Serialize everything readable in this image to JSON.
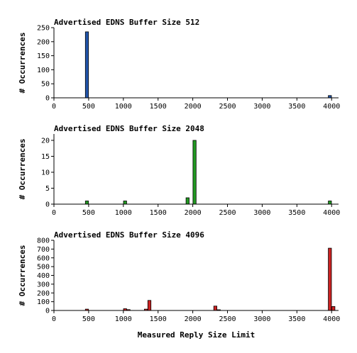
{
  "chart_data": [
    {
      "type": "bar",
      "title": "Advertised EDNS Buffer Size 512",
      "ylabel": "# Occurrences",
      "xlabel": "",
      "xlim": [
        0,
        4100
      ],
      "ylim": [
        0,
        250
      ],
      "xticks": [
        0,
        500,
        1000,
        1500,
        2000,
        2500,
        3000,
        3500,
        4000
      ],
      "yticks": [
        0,
        50,
        100,
        150,
        200,
        250
      ],
      "grid": false,
      "color": "#2255aa",
      "bars": [
        {
          "x": 475,
          "value": 235
        },
        {
          "x": 3975,
          "value": 8
        }
      ]
    },
    {
      "type": "bar",
      "title": "Advertised EDNS Buffer Size 2048",
      "ylabel": "# Occurrences",
      "xlabel": "",
      "xlim": [
        0,
        4100
      ],
      "ylim": [
        0,
        22
      ],
      "xticks": [
        0,
        500,
        1000,
        1500,
        2000,
        2500,
        3000,
        3500,
        4000
      ],
      "yticks": [
        0,
        5,
        10,
        15,
        20
      ],
      "grid": false,
      "color": "#229922",
      "bars": [
        {
          "x": 475,
          "value": 1
        },
        {
          "x": 1025,
          "value": 1
        },
        {
          "x": 1925,
          "value": 2
        },
        {
          "x": 2025,
          "value": 20
        },
        {
          "x": 3975,
          "value": 1
        }
      ]
    },
    {
      "type": "bar",
      "title": "Advertised EDNS Buffer Size 4096",
      "ylabel": "# Occurrences",
      "xlabel": "Measured Reply Size Limit",
      "xlim": [
        0,
        4100
      ],
      "ylim": [
        0,
        800
      ],
      "xticks": [
        0,
        500,
        1000,
        1500,
        2000,
        2500,
        3000,
        3500,
        4000
      ],
      "yticks": [
        0,
        100,
        200,
        300,
        400,
        500,
        600,
        700,
        800
      ],
      "grid": false,
      "color": "#cc2222",
      "bars": [
        {
          "x": 475,
          "value": 15
        },
        {
          "x": 1025,
          "value": 20
        },
        {
          "x": 1075,
          "value": 10
        },
        {
          "x": 1325,
          "value": 15
        },
        {
          "x": 1375,
          "value": 115
        },
        {
          "x": 2325,
          "value": 50
        },
        {
          "x": 2375,
          "value": 8
        },
        {
          "x": 3975,
          "value": 710
        },
        {
          "x": 4025,
          "value": 45
        }
      ]
    }
  ]
}
